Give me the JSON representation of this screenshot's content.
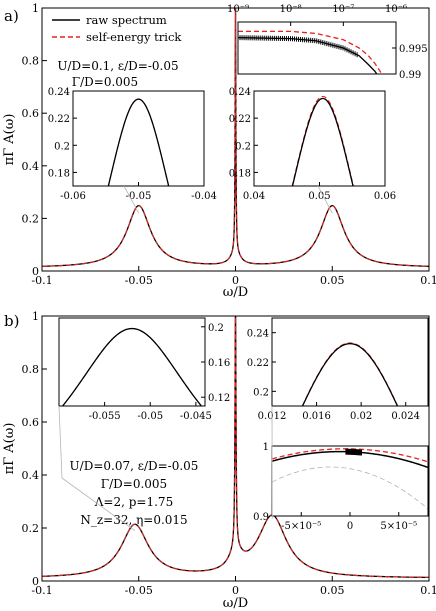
{
  "chart_data": [
    {
      "id": "a-main",
      "panel_label": "a)",
      "type": "line",
      "xlabel": "ω/D",
      "ylabel": "πΓ A(ω)",
      "xlim": [
        -0.1,
        0.1
      ],
      "ylim": [
        0,
        1
      ],
      "xticks": [
        "-0.1",
        "-0.05",
        "0",
        "0.05",
        "0.1"
      ],
      "yticks": [
        "0",
        "0.2",
        "0.4",
        "0.6",
        "0.8",
        "1"
      ],
      "legend": {
        "position": "top-left",
        "entries": [
          {
            "label": "raw spectrum",
            "color": "#000000",
            "style": "solid"
          },
          {
            "label": "self-energy trick",
            "color": "#e8211d",
            "style": "dashed"
          }
        ]
      },
      "annotation": [
        "U/D=0.1, ε/D=-0.05",
        "Γ/D=0.005"
      ],
      "features": {
        "side_peaks": [
          {
            "x": -0.05,
            "y": 0.235
          },
          {
            "x": 0.05,
            "y": 0.235
          }
        ],
        "central_peak": {
          "x": 0,
          "y": 1.0
        },
        "tail_at_edges": 0.02
      }
    },
    {
      "id": "a-inset-left",
      "type": "line",
      "xlim": [
        -0.06,
        -0.04
      ],
      "ylim": [
        0.17,
        0.24
      ],
      "xticks": [
        "-0.06",
        "-0.05",
        "-0.04"
      ],
      "yticks": [
        "0.18",
        "0.2",
        "0.22",
        "0.24"
      ],
      "series": [
        {
          "name": "raw spectrum",
          "peak": {
            "x": -0.05,
            "y": 0.234
          }
        },
        {
          "name": "self-energy trick",
          "peak": {
            "x": -0.05,
            "y": 0.234
          }
        }
      ]
    },
    {
      "id": "a-inset-right",
      "type": "line",
      "xlim": [
        0.04,
        0.06
      ],
      "ylim": [
        0.17,
        0.24
      ],
      "xticks": [
        "0.04",
        "0.05",
        "0.06"
      ],
      "yticks": [
        "0.18",
        "0.2",
        "0.22",
        "0.24"
      ],
      "series": [
        {
          "name": "raw spectrum",
          "peak": {
            "x": 0.0505,
            "y": 0.2345
          }
        },
        {
          "name": "self-energy trick",
          "peak": {
            "x": 0.0505,
            "y": 0.236
          }
        }
      ]
    },
    {
      "id": "a-inset-top",
      "type": "line",
      "log_x": true,
      "xlim": [
        1e-09,
        1e-06
      ],
      "ylim": [
        0.99,
        1.0
      ],
      "xticks": [
        "10⁻⁹",
        "10⁻⁸",
        "10⁻⁷",
        "10⁻⁶"
      ],
      "yticks": [
        "0.99",
        "0.995"
      ],
      "series": [
        {
          "name": "raw spectrum",
          "x": [
            1e-09,
            1e-08,
            3e-08,
            1e-07,
            2e-07,
            3e-07,
            4e-07,
            5e-07
          ],
          "values": [
            0.997,
            0.9968,
            0.9964,
            0.995,
            0.9935,
            0.9918,
            0.9905,
            0.989
          ]
        },
        {
          "name": "self-energy trick",
          "x": [
            1e-09,
            1e-08,
            3e-08,
            1e-07,
            2e-07,
            3e-07,
            4e-07,
            5e-07,
            6e-07
          ],
          "values": [
            0.9982,
            0.9982,
            0.9978,
            0.9966,
            0.995,
            0.9935,
            0.992,
            0.9905,
            0.989
          ]
        }
      ]
    },
    {
      "id": "b-main",
      "panel_label": "b)",
      "type": "line",
      "xlabel": "ω/D",
      "ylabel": "πΓ A(ω)",
      "xlim": [
        -0.1,
        0.1
      ],
      "ylim": [
        0,
        1
      ],
      "xticks": [
        "-0.1",
        "-0.05",
        "0",
        "0.05",
        "0.1"
      ],
      "yticks": [
        "0",
        "0.2",
        "0.4",
        "0.6",
        "0.8",
        "1"
      ],
      "annotation": [
        "U/D=0.07, ε/D=-0.05",
        "Γ/D=0.005",
        "Λ=2, p=1.75",
        "N_z=32, η=0.015"
      ],
      "features": {
        "side_peaks": [
          {
            "x": -0.052,
            "y": 0.2
          },
          {
            "x": 0.019,
            "y": 0.233
          }
        ],
        "central_peak": {
          "x": 0,
          "y": 1.0
        }
      }
    },
    {
      "id": "b-inset-left",
      "type": "line",
      "xlim": [
        -0.06,
        -0.044
      ],
      "ylim": [
        0.11,
        0.21
      ],
      "xticks": [
        "-0.055",
        "-0.05",
        "-0.045"
      ],
      "yticks": [
        "0.12",
        "0.16",
        "0.2"
      ],
      "series": [
        {
          "name": "raw spectrum",
          "peak": {
            "x": -0.052,
            "y": 0.198
          }
        },
        {
          "name": "self-energy trick",
          "peak": {
            "x": -0.052,
            "y": 0.198
          }
        }
      ]
    },
    {
      "id": "b-inset-right",
      "type": "line",
      "xlim": [
        0.012,
        0.026
      ],
      "ylim": [
        0.19,
        0.25
      ],
      "xticks": [
        "0.012",
        "0.016",
        "0.02",
        "0.024"
      ],
      "yticks": [
        "0.2",
        "0.22",
        "0.24"
      ],
      "series": [
        {
          "name": "raw spectrum",
          "peak": {
            "x": 0.019,
            "y": 0.2325
          }
        },
        {
          "name": "self-energy trick",
          "peak": {
            "x": 0.019,
            "y": 0.233
          }
        }
      ]
    },
    {
      "id": "b-inset-center",
      "type": "line",
      "xlim": [
        -8e-05,
        8e-05
      ],
      "ylim": [
        0.9,
        1.0
      ],
      "xticks": [
        "-5×10⁻⁵",
        "0",
        "5×10⁻⁵"
      ],
      "yticks": [
        "0.9",
        "1"
      ],
      "series": [
        {
          "name": "raw spectrum",
          "peak": {
            "x": -1e-05,
            "y": 0.992
          }
        },
        {
          "name": "self-energy trick",
          "peak": {
            "x": -5e-06,
            "y": 0.996
          }
        }
      ]
    }
  ],
  "colors": {
    "raw": "#000000",
    "trick": "#e8211d",
    "leader": "#b4b4b4"
  }
}
